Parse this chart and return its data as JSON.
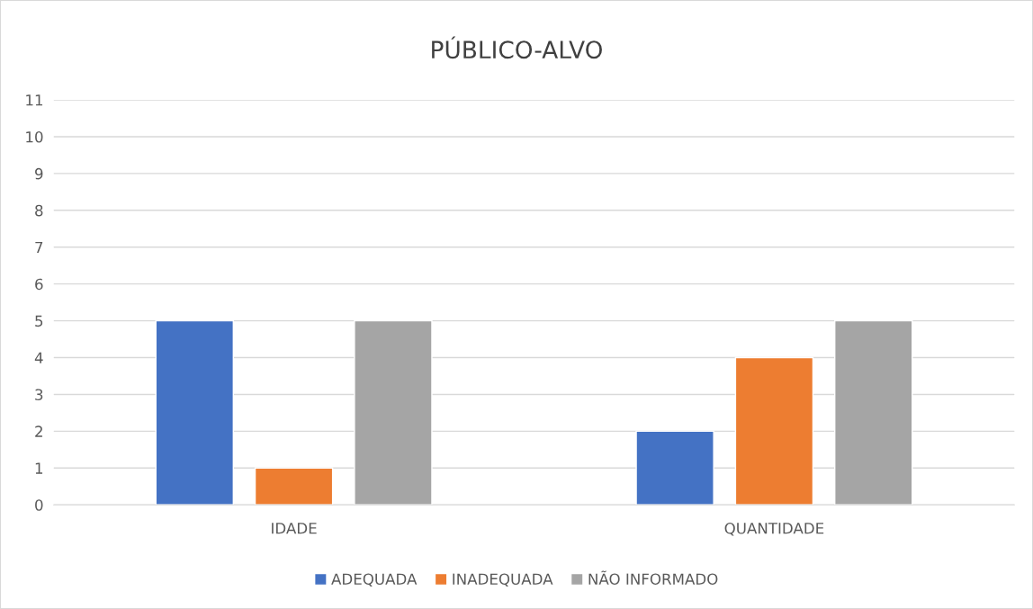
{
  "chart_data": {
    "type": "bar",
    "title": "PÚBLICO-ALVO",
    "categories": [
      "IDADE",
      "QUANTIDADE"
    ],
    "series": [
      {
        "name": "ADEQUADA",
        "color": "#4472c4",
        "values": [
          5,
          2
        ]
      },
      {
        "name": "INADEQUADA",
        "color": "#ed7d31",
        "values": [
          1,
          4
        ]
      },
      {
        "name": "NÃO INFORMADO",
        "color": "#a5a5a5",
        "values": [
          5,
          5
        ]
      }
    ],
    "ylim": [
      0,
      11
    ],
    "yticks": [
      0,
      1,
      2,
      3,
      4,
      5,
      6,
      7,
      8,
      9,
      10,
      11
    ],
    "grid": "y",
    "legend": "bottom"
  }
}
